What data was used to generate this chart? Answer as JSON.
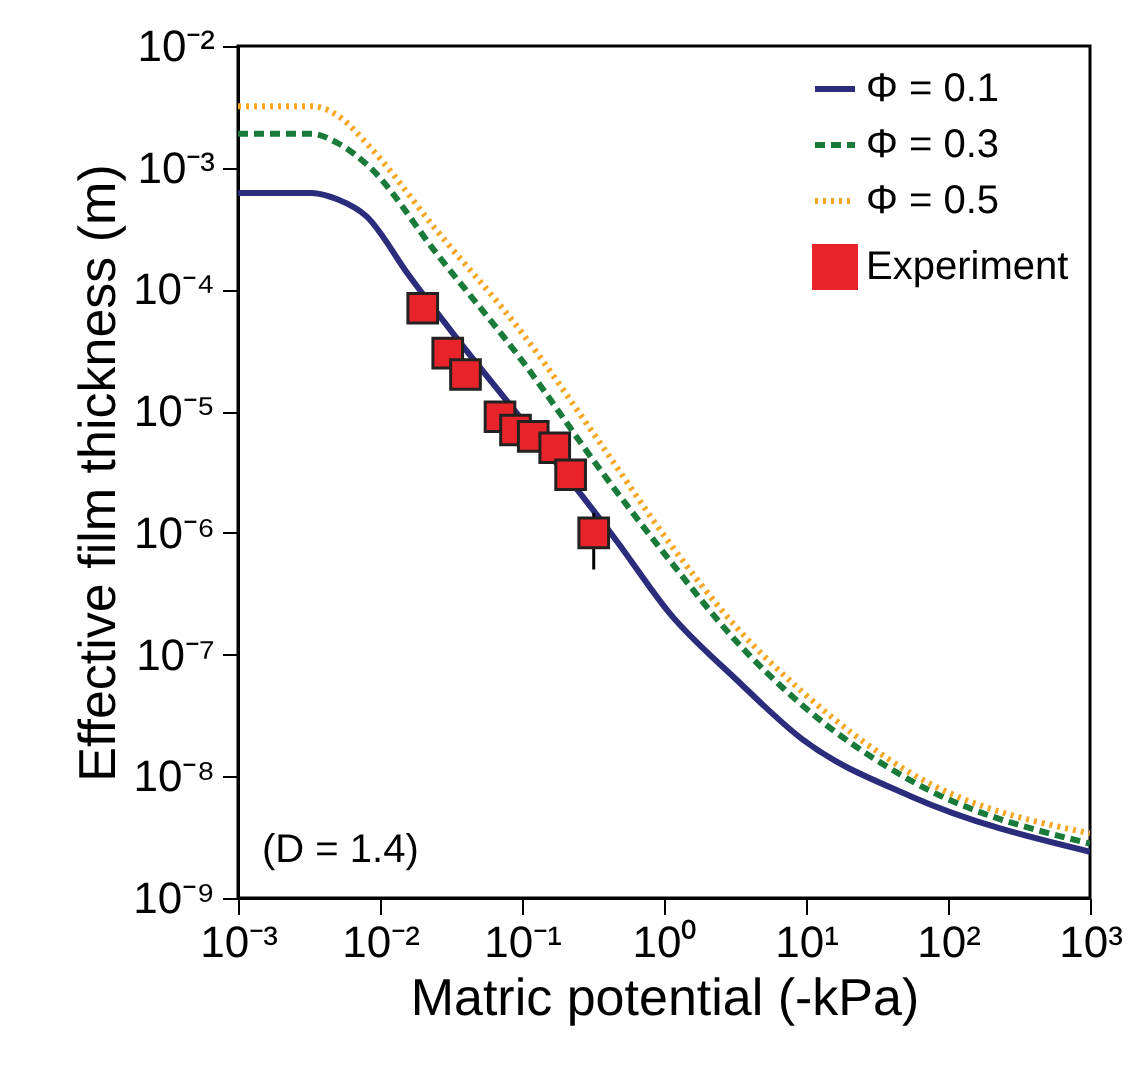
{
  "chart_data": {
    "type": "line",
    "xlabel": "Matric potential (-kPa)",
    "ylabel": "Effective film thickness (m)",
    "annotations": [
      "(D = 1.4)"
    ],
    "series": [
      {
        "name": "Φ = 0.1",
        "color": "#2b2c7c",
        "line_style": "solid",
        "x": [
          0.001,
          0.0033,
          0.005,
          0.008,
          0.016,
          0.034,
          0.1,
          0.46,
          1.09,
          3.2,
          9.5,
          54,
          1000
        ],
        "values": [
          0.00062,
          0.00062,
          0.00055,
          0.0004,
          0.00013,
          4.1e-05,
          8.5e-06,
          8.7e-07,
          2.2e-07,
          6.3e-08,
          2e-08,
          6.9e-09,
          2.4e-09
        ]
      },
      {
        "name": "Φ = 0.3",
        "color": "#1a7a3a",
        "line_style": "dashed",
        "x": [
          0.001,
          0.0033,
          0.005,
          0.0084,
          0.0248,
          0.1,
          0.37,
          1.09,
          3.2,
          9.5,
          54,
          1000
        ],
        "values": [
          0.0019,
          0.0019,
          0.0016,
          0.00102,
          0.0002,
          2.6e-05,
          3.1e-06,
          6e-07,
          1.3e-07,
          3.8e-08,
          9.3e-09,
          2.8e-09
        ]
      },
      {
        "name": "Φ = 0.5",
        "color": "#f5a623",
        "line_style": "dotted",
        "x": [
          0.001,
          0.0033,
          0.005,
          0.0084,
          0.0248,
          0.1,
          0.37,
          1.09,
          3.2,
          9.5,
          54,
          1000
        ],
        "values": [
          0.0032,
          0.0032,
          0.0027,
          0.0015,
          0.00031,
          4.4e-05,
          5.1e-06,
          8.3e-07,
          1.7e-07,
          4.9e-08,
          1.07e-08,
          3.4e-09
        ]
      },
      {
        "name": "Experiment",
        "type": "scatter",
        "marker": "square",
        "color": "#e8242a",
        "x": [
          0.02,
          0.03,
          0.04,
          0.07,
          0.09,
          0.12,
          0.17,
          0.22,
          0.32
        ],
        "values": [
          7e-05,
          3e-05,
          2e-05,
          9e-06,
          7e-06,
          6.2e-06,
          5e-06,
          3e-06,
          1e-06
        ],
        "errors": [
          null,
          null,
          null,
          null,
          null,
          null,
          null,
          null,
          [
            5e-07,
            1.46e-06
          ]
        ]
      }
    ],
    "log": "xy",
    "xlim": [
      0.001,
      1000
    ],
    "ylim": [
      1e-09,
      0.01
    ],
    "xticks": [
      {
        "value": 0.001,
        "label": "10⁻³"
      },
      {
        "value": 0.01,
        "label": "10⁻²"
      },
      {
        "value": 0.1,
        "label": "10⁻¹"
      },
      {
        "value": 1,
        "label": "10⁰"
      },
      {
        "value": 10,
        "label": "10¹"
      },
      {
        "value": 100,
        "label": "10²"
      },
      {
        "value": 1000,
        "label": "10³"
      }
    ],
    "yticks": [
      {
        "value": 1e-09,
        "label": "10⁻⁹"
      },
      {
        "value": 1e-08,
        "label": "10⁻⁸"
      },
      {
        "value": 1e-07,
        "label": "10⁻⁷"
      },
      {
        "value": 1e-06,
        "label": "10⁻⁶"
      },
      {
        "value": 1e-05,
        "label": "10⁻⁵"
      },
      {
        "value": 0.0001,
        "label": "10⁻⁴"
      },
      {
        "value": 0.001,
        "label": "10⁻³"
      },
      {
        "value": 0.01,
        "label": "10⁻²"
      }
    ],
    "grid": false,
    "legend": "top right"
  }
}
